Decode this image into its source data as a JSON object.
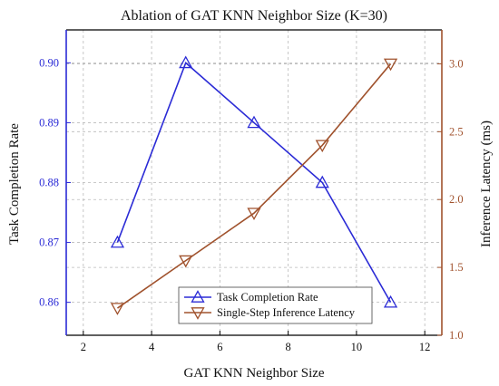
{
  "chart_data": {
    "type": "line",
    "title": "Ablation of GAT KNN Neighbor Size (K=30)",
    "xlabel": "GAT KNN Neighbor Size",
    "ylabel_left": "Task Completion Rate",
    "ylabel_right": "Inference Latency (ms)",
    "xlim": [
      1.5,
      12.5
    ],
    "ylim_left": [
      0.8545,
      0.9055
    ],
    "ylim_right": [
      1.0,
      3.25
    ],
    "x_ticks": [
      "2",
      "4",
      "6",
      "8",
      "10",
      "12"
    ],
    "y_left_ticks": [
      "0.86",
      "0.87",
      "0.88",
      "0.89",
      "0.90"
    ],
    "y_right_ticks": [
      "1.0",
      "1.5",
      "2.0",
      "2.5",
      "3.0"
    ],
    "x": [
      3,
      5,
      7,
      9,
      11
    ],
    "grid": true,
    "legend_position": "bottom-center",
    "series": [
      {
        "name": "Task Completion Rate",
        "axis": "left",
        "values": [
          0.87,
          0.9,
          0.89,
          0.88,
          0.86
        ],
        "color": "#2b2bd6",
        "marker": "triangle-up"
      },
      {
        "name": "Single-Step Inference Latency",
        "axis": "right",
        "values": [
          1.2,
          1.55,
          1.9,
          2.4,
          3.0
        ],
        "color": "#a0522d",
        "marker": "triangle-down"
      }
    ],
    "colors": {
      "left_axis": "#2b2bd6",
      "right_axis": "#a0522d",
      "frame": "#000000"
    }
  }
}
